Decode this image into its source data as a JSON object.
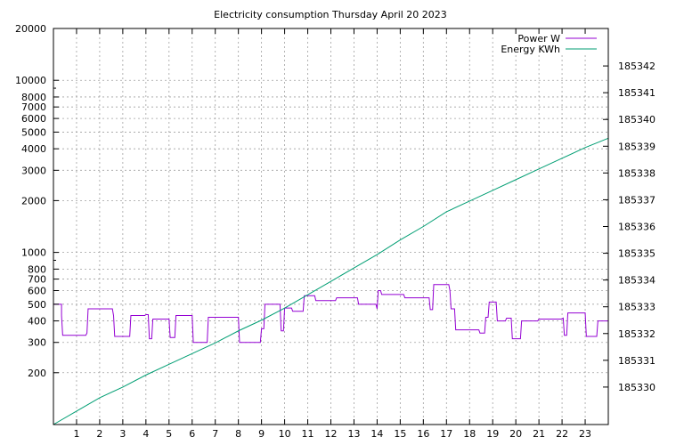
{
  "chart_data": {
    "type": "line",
    "title": "Electricity consumption Thursday April 20 2023",
    "x": {
      "range": [
        0,
        24
      ],
      "ticks": [
        1,
        2,
        3,
        4,
        5,
        6,
        7,
        8,
        9,
        10,
        11,
        12,
        13,
        14,
        15,
        16,
        17,
        18,
        19,
        20,
        21,
        22,
        23
      ]
    },
    "y_left": {
      "scale": "log",
      "range": [
        100,
        20000
      ],
      "ticks": [
        200,
        300,
        400,
        500,
        600,
        700,
        800,
        1000,
        2000,
        3000,
        4000,
        5000,
        6000,
        7000,
        8000,
        10000,
        20000
      ]
    },
    "y_right": {
      "scale": "linear",
      "range": [
        185328.6,
        185343.4
      ],
      "ticks": [
        185330,
        185331,
        185332,
        185333,
        185334,
        185335,
        185336,
        185337,
        185338,
        185339,
        185340,
        185341,
        185342
      ]
    },
    "grid": true,
    "legend_position": "top-right",
    "series": [
      {
        "name": "Power W",
        "axis": "left",
        "color": "#9400d3",
        "style": "steps",
        "points": [
          [
            0.0,
            500
          ],
          [
            0.35,
            500
          ],
          [
            0.35,
            430
          ],
          [
            0.4,
            330
          ],
          [
            1.4,
            330
          ],
          [
            1.45,
            340
          ],
          [
            1.5,
            470
          ],
          [
            2.55,
            470
          ],
          [
            2.6,
            430
          ],
          [
            2.65,
            325
          ],
          [
            3.3,
            325
          ],
          [
            3.35,
            430
          ],
          [
            3.95,
            430
          ],
          [
            4.0,
            435
          ],
          [
            4.1,
            435
          ],
          [
            4.15,
            315
          ],
          [
            4.25,
            315
          ],
          [
            4.3,
            410
          ],
          [
            5.0,
            410
          ],
          [
            5.05,
            320
          ],
          [
            5.25,
            320
          ],
          [
            5.3,
            430
          ],
          [
            6.0,
            430
          ],
          [
            6.05,
            300
          ],
          [
            6.65,
            300
          ],
          [
            6.7,
            420
          ],
          [
            8.0,
            420
          ],
          [
            8.05,
            300
          ],
          [
            8.95,
            300
          ],
          [
            9.0,
            360
          ],
          [
            9.1,
            360
          ],
          [
            9.15,
            500
          ],
          [
            9.8,
            500
          ],
          [
            9.85,
            350
          ],
          [
            9.95,
            350
          ],
          [
            10.0,
            475
          ],
          [
            10.3,
            475
          ],
          [
            10.35,
            455
          ],
          [
            10.8,
            455
          ],
          [
            10.85,
            560
          ],
          [
            11.3,
            560
          ],
          [
            11.35,
            525
          ],
          [
            12.2,
            525
          ],
          [
            12.25,
            545
          ],
          [
            13.15,
            545
          ],
          [
            13.2,
            500
          ],
          [
            13.95,
            500
          ],
          [
            14.0,
            470
          ],
          [
            14.05,
            600
          ],
          [
            14.15,
            600
          ],
          [
            14.2,
            570
          ],
          [
            15.15,
            570
          ],
          [
            15.2,
            545
          ],
          [
            16.25,
            545
          ],
          [
            16.3,
            465
          ],
          [
            16.4,
            465
          ],
          [
            16.45,
            650
          ],
          [
            17.1,
            650
          ],
          [
            17.15,
            600
          ],
          [
            17.2,
            470
          ],
          [
            17.35,
            470
          ],
          [
            17.4,
            355
          ],
          [
            18.4,
            355
          ],
          [
            18.45,
            340
          ],
          [
            18.65,
            340
          ],
          [
            18.7,
            420
          ],
          [
            18.8,
            420
          ],
          [
            18.85,
            515
          ],
          [
            19.15,
            515
          ],
          [
            19.2,
            400
          ],
          [
            19.55,
            400
          ],
          [
            19.6,
            415
          ],
          [
            19.8,
            415
          ],
          [
            19.85,
            315
          ],
          [
            20.2,
            315
          ],
          [
            20.25,
            400
          ],
          [
            20.95,
            400
          ],
          [
            21.0,
            410
          ],
          [
            22.0,
            410
          ],
          [
            22.05,
            415
          ],
          [
            22.1,
            330
          ],
          [
            22.2,
            330
          ],
          [
            22.25,
            445
          ],
          [
            23.0,
            445
          ],
          [
            23.05,
            325
          ],
          [
            23.5,
            325
          ],
          [
            23.55,
            400
          ],
          [
            24.0,
            400
          ]
        ]
      },
      {
        "name": "Energy KWh",
        "axis": "right",
        "color": "#009e73",
        "style": "line",
        "points": [
          [
            0.0,
            185328.6
          ],
          [
            1.0,
            185329.1
          ],
          [
            2.0,
            185329.6
          ],
          [
            3.0,
            185330.0
          ],
          [
            4.0,
            185330.45
          ],
          [
            5.0,
            185330.85
          ],
          [
            6.0,
            185331.25
          ],
          [
            7.0,
            185331.65
          ],
          [
            8.0,
            185332.1
          ],
          [
            9.0,
            185332.5
          ],
          [
            10.0,
            185332.95
          ],
          [
            11.0,
            185333.45
          ],
          [
            12.0,
            185333.95
          ],
          [
            13.0,
            185334.45
          ],
          [
            14.0,
            185334.95
          ],
          [
            15.0,
            185335.5
          ],
          [
            16.0,
            185336.0
          ],
          [
            17.0,
            185336.55
          ],
          [
            18.0,
            185336.95
          ],
          [
            19.0,
            185337.35
          ],
          [
            20.0,
            185337.75
          ],
          [
            21.0,
            185338.15
          ],
          [
            22.0,
            185338.55
          ],
          [
            23.0,
            185338.95
          ],
          [
            24.0,
            185339.3
          ]
        ]
      }
    ]
  }
}
